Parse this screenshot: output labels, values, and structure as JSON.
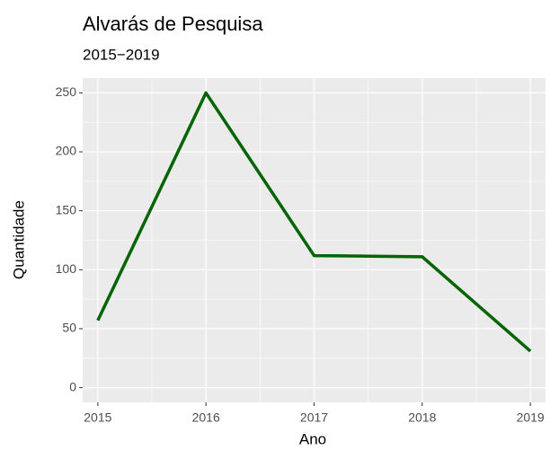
{
  "chart_data": {
    "type": "line",
    "title": "Alvarás de Pesquisa",
    "subtitle": "2015−2019",
    "x_label": "Ano",
    "y_label": "Quantidade",
    "x": [
      2015,
      2016,
      2017,
      2018,
      2019
    ],
    "series": [
      {
        "name": "Quantidade",
        "color": "#006400",
        "values": [
          57,
          250,
          112,
          111,
          31
        ]
      }
    ],
    "xlim": [
      2014.86,
      2019.14
    ],
    "xticks": [
      2015,
      2016,
      2017,
      2018,
      2019
    ],
    "ylim": [
      -12.5,
      262.5
    ],
    "yticks": [
      0,
      50,
      100,
      150,
      200,
      250
    ],
    "grid": true,
    "minor_grid": true,
    "legend": false
  }
}
